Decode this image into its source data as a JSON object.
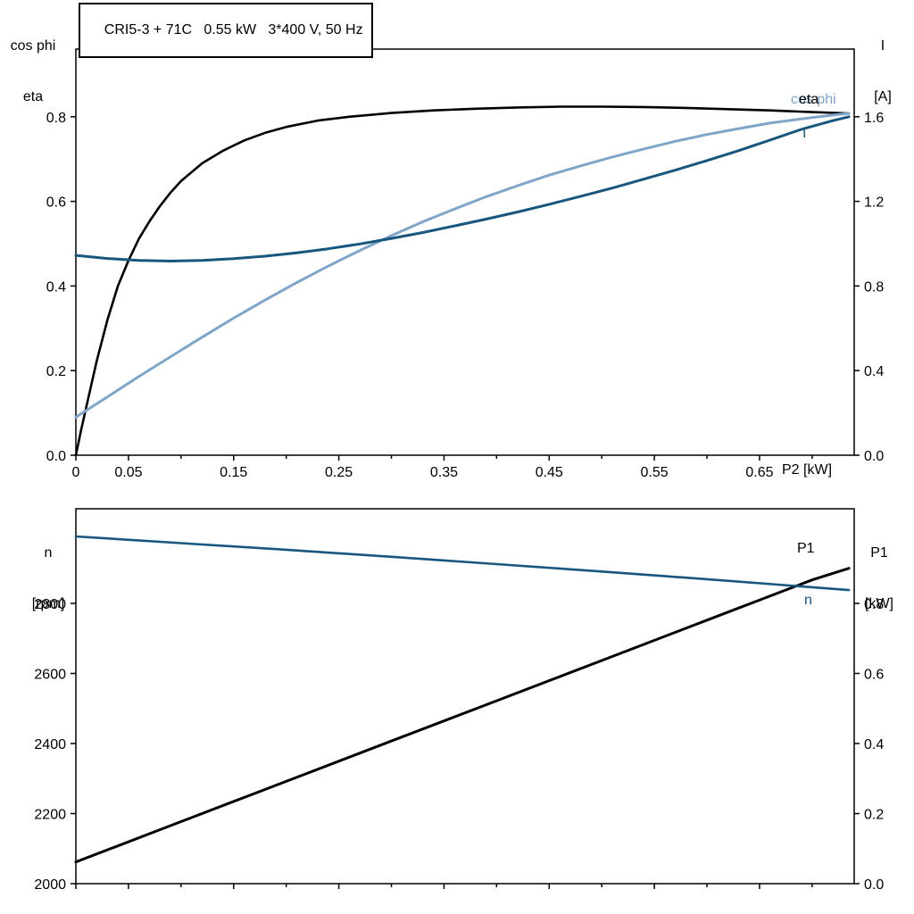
{
  "colors": {
    "black": "#000000",
    "dark_blue": "#17567f",
    "light_blue": "#7fa6c9",
    "frame": "#000000",
    "background": "#ffffff"
  },
  "chart_data": [
    {
      "id": "top",
      "type": "line",
      "title": "CRI5-3 + 71C   0.55 kW   3*400 V, 50 Hz",
      "xlabel": "P2 [kW]",
      "ylabel_left": {
        "line1": "cos phi",
        "line2": "eta"
      },
      "ylabel_right": {
        "line1": "I",
        "line2": "[A]"
      },
      "xlim": [
        0,
        0.74
      ],
      "ylim_left": [
        0,
        0.96
      ],
      "ylim_right": [
        0,
        1.92
      ],
      "grid": false,
      "legend_position": "inline-curve-end-labels",
      "xticks": [
        {
          "v": 0,
          "label": "0"
        },
        {
          "v": 0.05,
          "label": "0.05"
        },
        {
          "v": 0.15,
          "label": "0.15"
        },
        {
          "v": 0.25,
          "label": "0.25"
        },
        {
          "v": 0.35,
          "label": "0.35"
        },
        {
          "v": 0.45,
          "label": "0.45"
        },
        {
          "v": 0.55,
          "label": "0.55"
        },
        {
          "v": 0.65,
          "label": "0.65"
        }
      ],
      "xticks_minor": [
        0.1,
        0.2,
        0.3,
        0.4,
        0.5,
        0.6,
        0.7
      ],
      "yticks_left": [
        {
          "v": 0.0,
          "label": "0.0"
        },
        {
          "v": 0.2,
          "label": "0.2"
        },
        {
          "v": 0.4,
          "label": "0.4"
        },
        {
          "v": 0.6,
          "label": "0.6"
        },
        {
          "v": 0.8,
          "label": "0.8"
        }
      ],
      "yticks_right": [
        {
          "v": 0.0,
          "label": "0.0"
        },
        {
          "v": 0.4,
          "label": "0.4"
        },
        {
          "v": 0.8,
          "label": "0.8"
        },
        {
          "v": 1.2,
          "label": "1.2"
        },
        {
          "v": 1.6,
          "label": "1.6"
        }
      ],
      "series": [
        {
          "name": "eta",
          "axis": "left",
          "color_key": "black",
          "width": 2.6,
          "points": [
            [
              0,
              0
            ],
            [
              0.005,
              0.06
            ],
            [
              0.01,
              0.115
            ],
            [
              0.015,
              0.17
            ],
            [
              0.02,
              0.225
            ],
            [
              0.03,
              0.32
            ],
            [
              0.04,
              0.4
            ],
            [
              0.05,
              0.46
            ],
            [
              0.06,
              0.512
            ],
            [
              0.07,
              0.553
            ],
            [
              0.08,
              0.589
            ],
            [
              0.09,
              0.621
            ],
            [
              0.1,
              0.648
            ],
            [
              0.12,
              0.69
            ],
            [
              0.14,
              0.72
            ],
            [
              0.16,
              0.744
            ],
            [
              0.18,
              0.762
            ],
            [
              0.2,
              0.776
            ],
            [
              0.23,
              0.791
            ],
            [
              0.26,
              0.8
            ],
            [
              0.3,
              0.809
            ],
            [
              0.34,
              0.815
            ],
            [
              0.38,
              0.819
            ],
            [
              0.42,
              0.822
            ],
            [
              0.46,
              0.824
            ],
            [
              0.5,
              0.824
            ],
            [
              0.54,
              0.823
            ],
            [
              0.58,
              0.821
            ],
            [
              0.62,
              0.818
            ],
            [
              0.66,
              0.815
            ],
            [
              0.7,
              0.811
            ],
            [
              0.735,
              0.808
            ]
          ]
        },
        {
          "name": "cos phi",
          "axis": "left",
          "color_key": "light_blue",
          "width": 3,
          "points": [
            [
              0,
              0.09
            ],
            [
              0.03,
              0.138
            ],
            [
              0.06,
              0.186
            ],
            [
              0.09,
              0.233
            ],
            [
              0.12,
              0.279
            ],
            [
              0.15,
              0.324
            ],
            [
              0.18,
              0.367
            ],
            [
              0.21,
              0.408
            ],
            [
              0.24,
              0.447
            ],
            [
              0.27,
              0.484
            ],
            [
              0.3,
              0.519
            ],
            [
              0.33,
              0.552
            ],
            [
              0.36,
              0.582
            ],
            [
              0.39,
              0.611
            ],
            [
              0.42,
              0.637
            ],
            [
              0.45,
              0.662
            ],
            [
              0.48,
              0.684
            ],
            [
              0.51,
              0.705
            ],
            [
              0.54,
              0.724
            ],
            [
              0.57,
              0.742
            ],
            [
              0.6,
              0.758
            ],
            [
              0.63,
              0.772
            ],
            [
              0.66,
              0.785
            ],
            [
              0.69,
              0.795
            ],
            [
              0.72,
              0.804
            ],
            [
              0.735,
              0.808
            ]
          ]
        },
        {
          "name": "I",
          "axis": "right",
          "color_key": "dark_blue",
          "width": 3,
          "points": [
            [
              0,
              0.945
            ],
            [
              0.03,
              0.93
            ],
            [
              0.06,
              0.921
            ],
            [
              0.09,
              0.918
            ],
            [
              0.12,
              0.921
            ],
            [
              0.15,
              0.929
            ],
            [
              0.18,
              0.941
            ],
            [
              0.21,
              0.957
            ],
            [
              0.24,
              0.976
            ],
            [
              0.27,
              0.999
            ],
            [
              0.3,
              1.025
            ],
            [
              0.33,
              1.053
            ],
            [
              0.36,
              1.084
            ],
            [
              0.39,
              1.116
            ],
            [
              0.42,
              1.15
            ],
            [
              0.45,
              1.186
            ],
            [
              0.48,
              1.224
            ],
            [
              0.51,
              1.263
            ],
            [
              0.54,
              1.305
            ],
            [
              0.57,
              1.348
            ],
            [
              0.6,
              1.393
            ],
            [
              0.63,
              1.44
            ],
            [
              0.66,
              1.49
            ],
            [
              0.69,
              1.541
            ],
            [
              0.72,
              1.582
            ],
            [
              0.735,
              1.6
            ]
          ]
        }
      ]
    },
    {
      "id": "bottom",
      "type": "line",
      "title": "",
      "xlabel": "",
      "ylabel_left": {
        "line1": "n",
        "line2": "[rpm]"
      },
      "ylabel_right": {
        "line1": "P1",
        "line2": "[kW]"
      },
      "xlim": [
        0,
        0.74
      ],
      "ylim_left": [
        2000,
        3070
      ],
      "ylim_right": [
        0,
        1.07
      ],
      "grid": false,
      "legend_position": "inline-curve-end-labels",
      "xticks": [
        {
          "v": 0
        },
        {
          "v": 0.05
        },
        {
          "v": 0.15
        },
        {
          "v": 0.25
        },
        {
          "v": 0.35
        },
        {
          "v": 0.45
        },
        {
          "v": 0.55
        },
        {
          "v": 0.65
        }
      ],
      "xticks_minor": [
        0.1,
        0.2,
        0.3,
        0.4,
        0.5,
        0.6,
        0.7
      ],
      "yticks_left": [
        {
          "v": 2000,
          "label": "2000"
        },
        {
          "v": 2200,
          "label": "2200"
        },
        {
          "v": 2400,
          "label": "2400"
        },
        {
          "v": 2600,
          "label": "2600"
        },
        {
          "v": 2800,
          "label": "2800"
        }
      ],
      "yticks_right": [
        {
          "v": 0.0,
          "label": "0.0"
        },
        {
          "v": 0.2,
          "label": "0.2"
        },
        {
          "v": 0.4,
          "label": "0.4"
        },
        {
          "v": 0.6,
          "label": "0.6"
        },
        {
          "v": 0.8,
          "label": "0.8"
        }
      ],
      "series": [
        {
          "name": "P1",
          "axis": "right",
          "color_key": "black",
          "width": 3,
          "points": [
            [
              0,
              0.062
            ],
            [
              0.1,
              0.177
            ],
            [
              0.2,
              0.292
            ],
            [
              0.3,
              0.407
            ],
            [
              0.4,
              0.522
            ],
            [
              0.5,
              0.637
            ],
            [
              0.6,
              0.752
            ],
            [
              0.7,
              0.867
            ],
            [
              0.735,
              0.9
            ]
          ]
        },
        {
          "name": "n",
          "axis": "left",
          "color_key": "dark_blue",
          "width": 2.6,
          "points": [
            [
              0,
              2991
            ],
            [
              0.1,
              2972
            ],
            [
              0.2,
              2953
            ],
            [
              0.3,
              2933
            ],
            [
              0.4,
              2912
            ],
            [
              0.5,
              2891
            ],
            [
              0.6,
              2869
            ],
            [
              0.7,
              2846
            ],
            [
              0.735,
              2838
            ]
          ]
        }
      ]
    }
  ]
}
